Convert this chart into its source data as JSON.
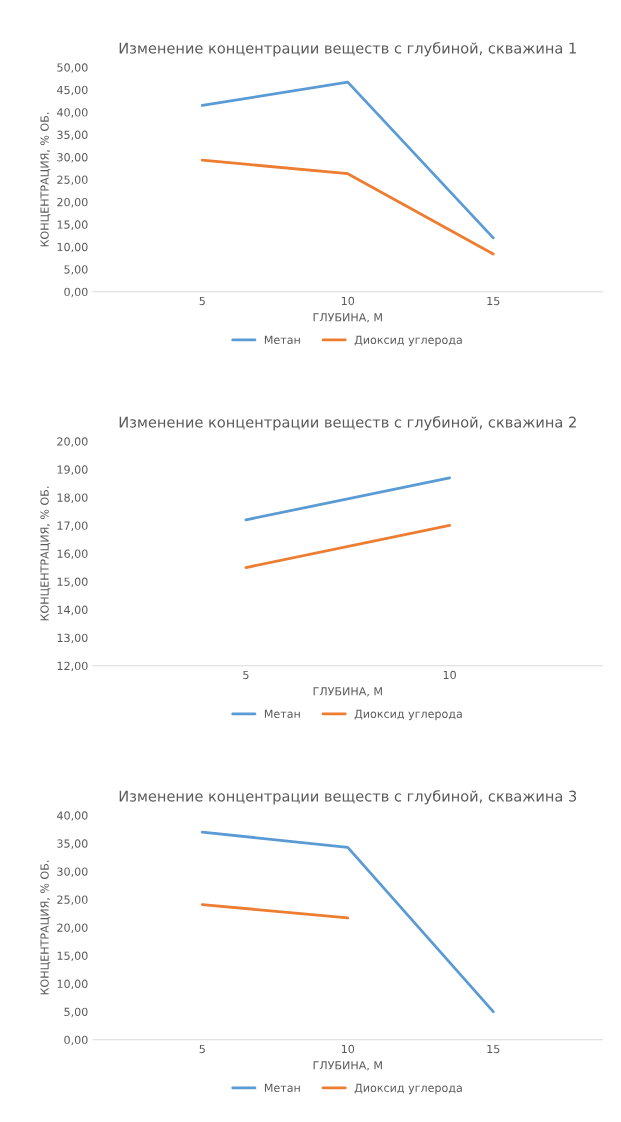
{
  "chart_data": [
    {
      "type": "line",
      "title": "Изменение концентрации веществ с глубиной, скважина 1",
      "xlabel": "ГЛУБИНА, М",
      "ylabel": "КОНЦЕНТРАЦИЯ, % ОБ.",
      "categories": [
        "5",
        "10",
        "15"
      ],
      "series": [
        {
          "name": "Метан",
          "color": "#5b9bd5",
          "values": [
            41.5,
            46.7,
            12.0
          ]
        },
        {
          "name": "Диоксид углерода",
          "color": "#ed7d31",
          "values": [
            29.3,
            26.3,
            8.4
          ]
        }
      ],
      "ylim": [
        0,
        50
      ],
      "yticks": [
        {
          "value": 0,
          "label": "0,00"
        },
        {
          "value": 5,
          "label": "5,00"
        },
        {
          "value": 10,
          "label": "10,00"
        },
        {
          "value": 15,
          "label": "15,00"
        },
        {
          "value": 20,
          "label": "20,00"
        },
        {
          "value": 25,
          "label": "25,00"
        },
        {
          "value": 30,
          "label": "30,00"
        },
        {
          "value": 35,
          "label": "35,00"
        },
        {
          "value": 40,
          "label": "40,00"
        },
        {
          "value": 45,
          "label": "45,00"
        },
        {
          "value": 50,
          "label": "50,00"
        }
      ],
      "legend": "bottom",
      "grid": false,
      "marker": "none",
      "line_style": "solid"
    },
    {
      "type": "line",
      "title": "Изменение концентрации веществ с глубиной, скважина 2",
      "xlabel": "ГЛУБИНА, М",
      "ylabel": "КОНЦЕНТРАЦИЯ, % ОБ.",
      "categories": [
        "5",
        "10"
      ],
      "series": [
        {
          "name": "Метан",
          "color": "#5b9bd5",
          "values": [
            17.2,
            18.7
          ]
        },
        {
          "name": "Диоксид углерода",
          "color": "#ed7d31",
          "values": [
            15.5,
            17.0
          ]
        }
      ],
      "ylim": [
        12,
        20
      ],
      "yticks": [
        {
          "value": 12,
          "label": "12,00"
        },
        {
          "value": 13,
          "label": "13,00"
        },
        {
          "value": 14,
          "label": "14,00"
        },
        {
          "value": 15,
          "label": "15,00"
        },
        {
          "value": 16,
          "label": "16,00"
        },
        {
          "value": 17,
          "label": "17,00"
        },
        {
          "value": 18,
          "label": "18,00"
        },
        {
          "value": 19,
          "label": "19,00"
        },
        {
          "value": 20,
          "label": "20,00"
        }
      ],
      "legend": "bottom",
      "grid": false,
      "marker": "none",
      "line_style": "solid"
    },
    {
      "type": "line",
      "title": "Изменение концентрации веществ с глубиной, скважина 3",
      "xlabel": "ГЛУБИНА, М",
      "ylabel": "КОНЦЕНТРАЦИЯ, % ОБ.",
      "categories": [
        "5",
        "10",
        "15"
      ],
      "series": [
        {
          "name": "Метан",
          "color": "#5b9bd5",
          "values": [
            37.0,
            34.3,
            5.0
          ]
        },
        {
          "name": "Диоксид углерода",
          "color": "#ed7d31",
          "values": [
            24.1,
            21.7,
            null
          ]
        }
      ],
      "ylim": [
        0,
        40
      ],
      "yticks": [
        {
          "value": 0,
          "label": "0,00"
        },
        {
          "value": 5,
          "label": "5,00"
        },
        {
          "value": 10,
          "label": "10,00"
        },
        {
          "value": 15,
          "label": "15,00"
        },
        {
          "value": 20,
          "label": "20,00"
        },
        {
          "value": 25,
          "label": "25,00"
        },
        {
          "value": 30,
          "label": "30,00"
        },
        {
          "value": 35,
          "label": "35,00"
        },
        {
          "value": 40,
          "label": "40,00"
        }
      ],
      "legend": "bottom",
      "grid": false,
      "marker": "none",
      "line_style": "solid"
    }
  ]
}
